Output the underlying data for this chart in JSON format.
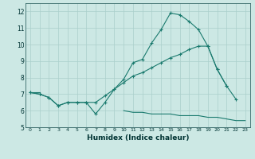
{
  "xlabel": "Humidex (Indice chaleur)",
  "xlim": [
    -0.5,
    23.5
  ],
  "ylim": [
    5,
    12.5
  ],
  "yticks": [
    5,
    6,
    7,
    8,
    9,
    10,
    11,
    12
  ],
  "xticks": [
    0,
    1,
    2,
    3,
    4,
    5,
    6,
    7,
    8,
    9,
    10,
    11,
    12,
    13,
    14,
    15,
    16,
    17,
    18,
    19,
    20,
    21,
    22,
    23
  ],
  "line_color": "#1a7a6e",
  "bg_color": "#cce8e4",
  "grid_color": "#aacfcb",
  "line1_x": [
    0,
    1,
    2,
    3,
    4,
    5,
    6,
    7,
    8,
    9,
    10,
    11,
    12,
    13,
    14,
    15,
    16,
    17,
    18,
    19,
    20,
    21,
    22
  ],
  "line1_y": [
    7.1,
    7.0,
    6.8,
    6.3,
    6.5,
    6.5,
    6.5,
    5.8,
    6.5,
    7.3,
    7.9,
    8.9,
    9.1,
    10.1,
    10.9,
    11.9,
    11.8,
    11.4,
    10.9,
    9.9,
    8.5,
    7.5,
    6.7
  ],
  "line2_x": [
    0,
    1,
    2,
    3,
    4,
    5,
    6,
    7,
    8,
    9,
    10,
    11,
    12,
    13,
    14,
    15,
    16,
    17,
    18,
    19,
    20,
    21
  ],
  "line2_y": [
    7.1,
    7.0,
    6.8,
    6.3,
    6.5,
    6.5,
    6.5,
    6.5,
    6.9,
    7.3,
    7.7,
    8.1,
    8.3,
    8.6,
    8.9,
    9.2,
    9.4,
    9.7,
    9.9,
    9.9,
    8.5,
    7.5
  ],
  "line3_x": [
    10,
    11,
    12,
    13,
    14,
    15,
    16,
    17,
    18,
    19,
    20,
    21,
    22,
    23
  ],
  "line3_y": [
    6.0,
    5.9,
    5.9,
    5.8,
    5.8,
    5.8,
    5.7,
    5.7,
    5.7,
    5.6,
    5.6,
    5.5,
    5.4,
    5.4
  ],
  "line4_x": [
    0,
    1
  ],
  "line4_y": [
    7.1,
    7.1
  ]
}
